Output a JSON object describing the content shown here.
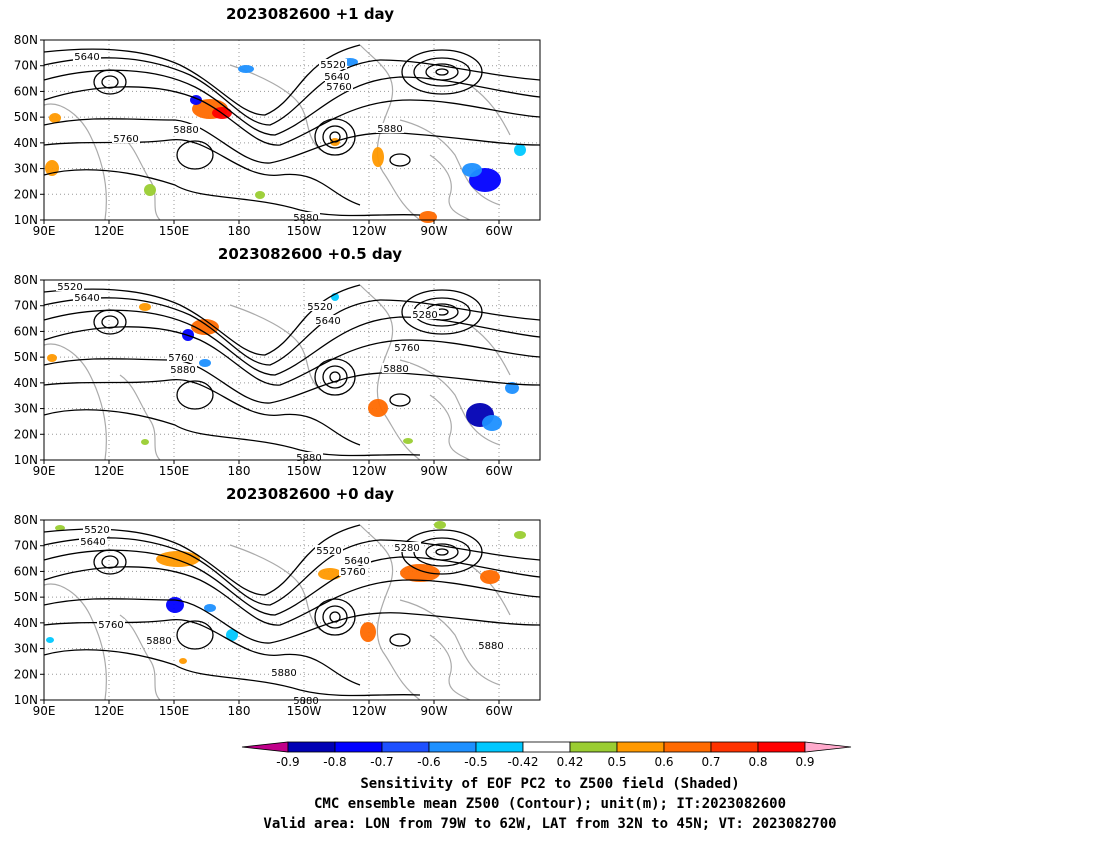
{
  "panels": [
    {
      "title": "2023082600  +1 day",
      "contour_labels": [
        "5640",
        "5520",
        "5640",
        "5760",
        "5760",
        "5880",
        "5880",
        "5880"
      ]
    },
    {
      "title": "2023082600  +0.5 day",
      "contour_labels": [
        "5520",
        "5640",
        "5520",
        "5640",
        "5280",
        "5760",
        "5760",
        "5880",
        "5880",
        "5880"
      ]
    },
    {
      "title": "2023082600  +0 day",
      "contour_labels": [
        "5520",
        "5640",
        "5520",
        "5280",
        "5640",
        "5760",
        "5760",
        "5880",
        "5880",
        "5880",
        "5880"
      ]
    }
  ],
  "lat_labels": [
    "80N",
    "70N",
    "60N",
    "50N",
    "40N",
    "30N",
    "20N",
    "10N"
  ],
  "lon_labels": [
    "90E",
    "120E",
    "150E",
    "180",
    "150W",
    "120W",
    "90W",
    "60W"
  ],
  "colorbar": {
    "ticks": [
      "-0.9",
      "-0.8",
      "-0.7",
      "-0.6",
      "-0.5",
      "-0.42",
      "0.42",
      "0.5",
      "0.6",
      "0.7",
      "0.8",
      "0.9"
    ],
    "colors": [
      "#c0008a",
      "#0000b4",
      "#0000ff",
      "#1e50ff",
      "#1e90ff",
      "#00c8ff",
      "#ffffff",
      "#9acd32",
      "#ff9900",
      "#ff6a00",
      "#ff3300",
      "#ff0000",
      "#ffaacc"
    ]
  },
  "footer": {
    "line1": "Sensitivity of EOF PC2 to Z500 field (Shaded)",
    "line2": "CMC ensemble mean Z500 (Contour); unit(m); IT:2023082600",
    "line3": "Valid area: LON from 79W to 62W, LAT from 32N to 45N; VT: 2023082700"
  }
}
